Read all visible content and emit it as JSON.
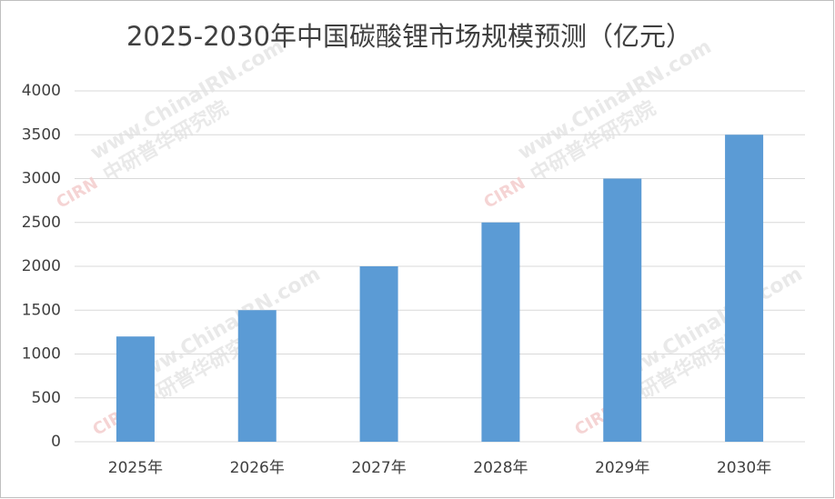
{
  "chart_data": {
    "type": "bar",
    "title": "2025-2030年中国碳酸锂市场规模预测（亿元）",
    "categories": [
      "2025年",
      "2026年",
      "2027年",
      "2028年",
      "2029年",
      "2030年"
    ],
    "values": [
      1200,
      1500,
      2000,
      2500,
      3000,
      3500
    ],
    "color": "#5b9bd5",
    "ylim": [
      0,
      4000
    ],
    "yticks": [
      0,
      500,
      1000,
      1500,
      2000,
      2500,
      3000,
      3500,
      4000
    ],
    "grid": true,
    "watermark": [
      "www.ChinaIRN.com",
      "中研普华研究院",
      "CIRN"
    ]
  }
}
